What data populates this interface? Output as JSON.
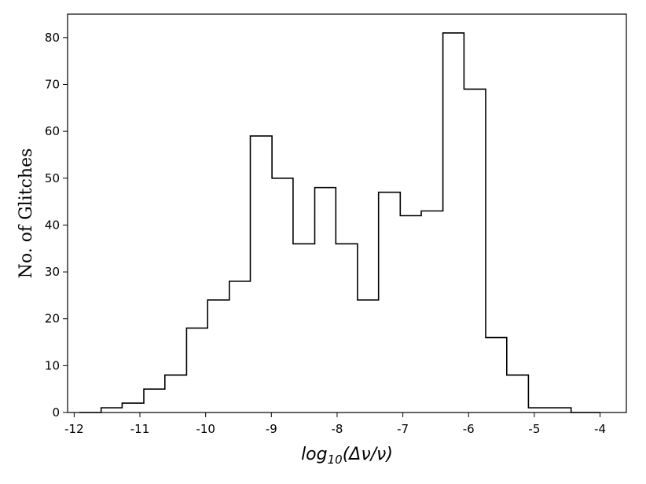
{
  "chart_data": {
    "type": "histogram",
    "title": "",
    "xlabel": "log",
    "xlabel_sub": "10",
    "xlabel_tail": "(Δν/ν)",
    "ylabel": "No. of Glitches",
    "xlim": [
      -12.1,
      -3.6
    ],
    "ylim": [
      0,
      85
    ],
    "grid": false,
    "legend": "none",
    "line_color": "#000000",
    "x_ticks": [
      -12,
      -11,
      -10,
      -9,
      -8,
      -7,
      -6,
      -5,
      -4
    ],
    "x_tick_labels": [
      "-12",
      "-11",
      "-10",
      "-9",
      "-8",
      "-7",
      "-6",
      "-5",
      "-4"
    ],
    "y_ticks": [
      0,
      10,
      20,
      30,
      40,
      50,
      60,
      70,
      80
    ],
    "y_tick_labels": [
      "0",
      "10",
      "20",
      "30",
      "40",
      "50",
      "60",
      "70",
      "80"
    ],
    "bin_edges": [
      -11.92,
      -11.59,
      -11.27,
      -10.94,
      -10.62,
      -10.29,
      -9.97,
      -9.64,
      -9.32,
      -8.99,
      -8.67,
      -8.34,
      -8.02,
      -7.69,
      -7.37,
      -7.04,
      -6.72,
      -6.39,
      -6.07,
      -5.74,
      -5.42,
      -5.09,
      -4.77,
      -4.44,
      -4.0
    ],
    "counts": [
      0,
      1,
      2,
      5,
      8,
      18,
      24,
      28,
      59,
      50,
      36,
      48,
      36,
      24,
      47,
      42,
      43,
      81,
      69,
      16,
      8,
      1,
      1,
      0
    ]
  }
}
